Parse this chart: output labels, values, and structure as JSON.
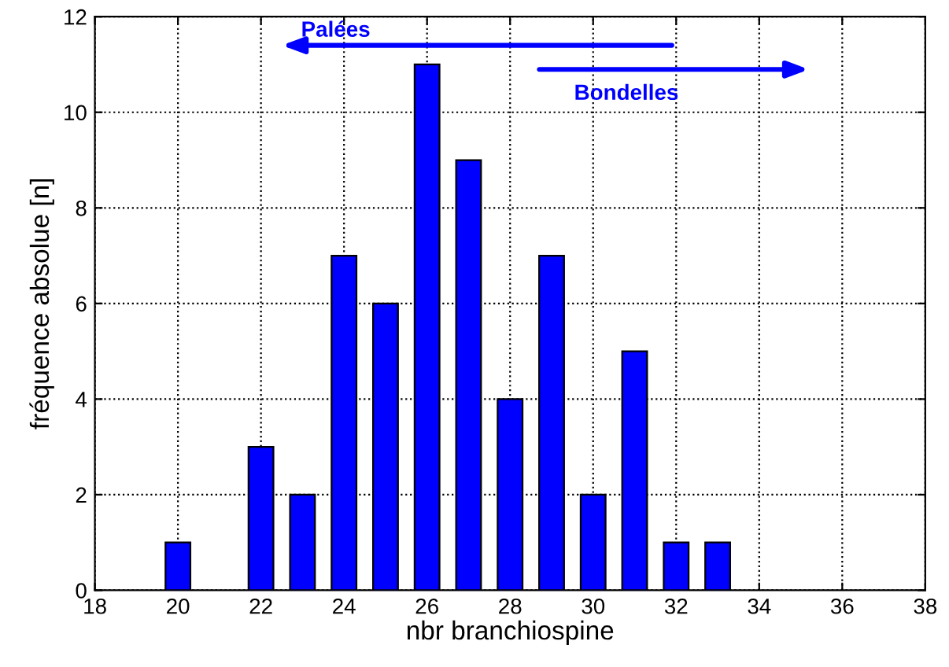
{
  "chart_data": {
    "type": "bar",
    "x": [
      20,
      22,
      23,
      24,
      25,
      26,
      27,
      28,
      29,
      30,
      31,
      32,
      33
    ],
    "values": [
      1,
      3,
      2,
      7,
      6,
      11,
      9,
      4,
      7,
      2,
      5,
      1,
      1
    ],
    "color": "#0000ff",
    "xlabel": "nbr branchiospine",
    "ylabel": "fréquence absolue [n]",
    "xlim": [
      18,
      38
    ],
    "xticks": [
      18,
      20,
      22,
      24,
      26,
      28,
      30,
      32,
      34,
      36,
      38
    ],
    "ylim": [
      0,
      12
    ],
    "yticks": [
      0,
      2,
      4,
      6,
      8,
      10,
      12
    ],
    "grid": true,
    "annotations": [
      "Palées",
      "Bondelles"
    ]
  }
}
